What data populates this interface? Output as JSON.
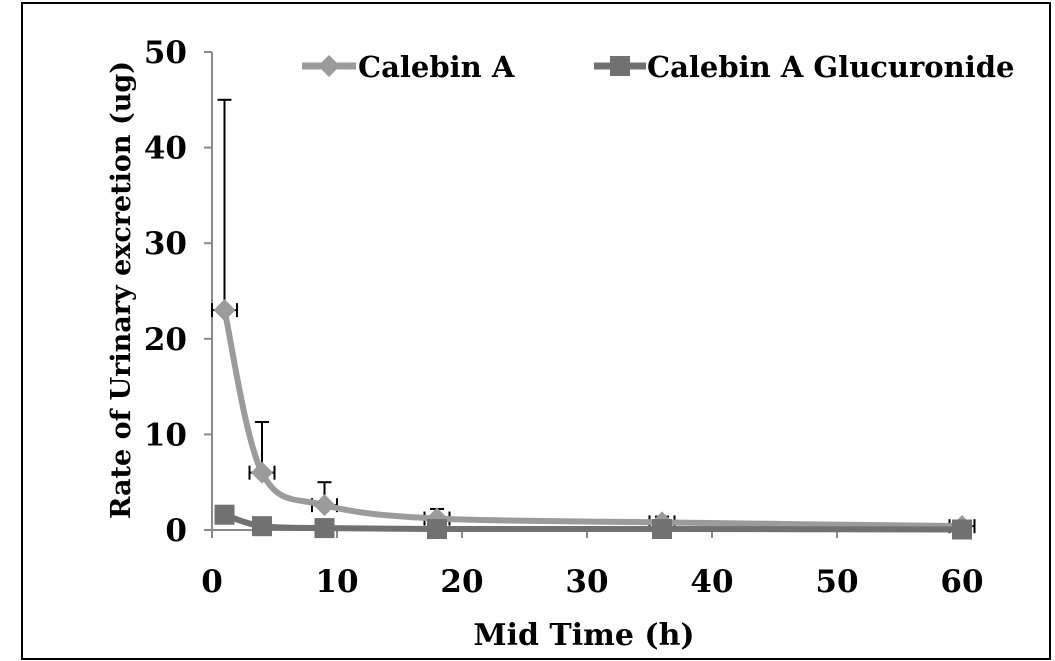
{
  "chart_data": {
    "type": "line",
    "title": "",
    "xlabel": "Mid Time (h)",
    "ylabel": "Rate of Urinary excretion (ug)",
    "xlim": [
      0,
      60
    ],
    "ylim": [
      0,
      50
    ],
    "x_ticks": [
      "0",
      "10",
      "20",
      "30",
      "40",
      "50",
      "60"
    ],
    "y_ticks": [
      "0",
      "10",
      "20",
      "30",
      "40",
      "50"
    ],
    "grid": false,
    "legend_position": "top",
    "smooth": true,
    "series": [
      {
        "name": "Calebin A",
        "color": "#9b9b9b",
        "marker": "diamond",
        "x": [
          1,
          4,
          9,
          18,
          36,
          60
        ],
        "y": [
          23,
          6,
          2.6,
          1.2,
          0.8,
          0.4
        ],
        "y_err": [
          22,
          5.3,
          2.4,
          1.0,
          0.6,
          0.4
        ],
        "x_err": [
          1,
          1,
          1,
          1,
          1,
          1
        ]
      },
      {
        "name": "Calebin A Glucuronide",
        "color": "#717171",
        "marker": "square",
        "x": [
          1,
          4,
          9,
          18,
          36,
          60
        ],
        "y": [
          1.6,
          0.4,
          0.2,
          0.1,
          0.1,
          0.05
        ],
        "y_err": [
          0,
          0,
          0,
          0,
          0,
          0
        ],
        "x_err": [
          1,
          1,
          1,
          1,
          1,
          1
        ]
      }
    ]
  }
}
